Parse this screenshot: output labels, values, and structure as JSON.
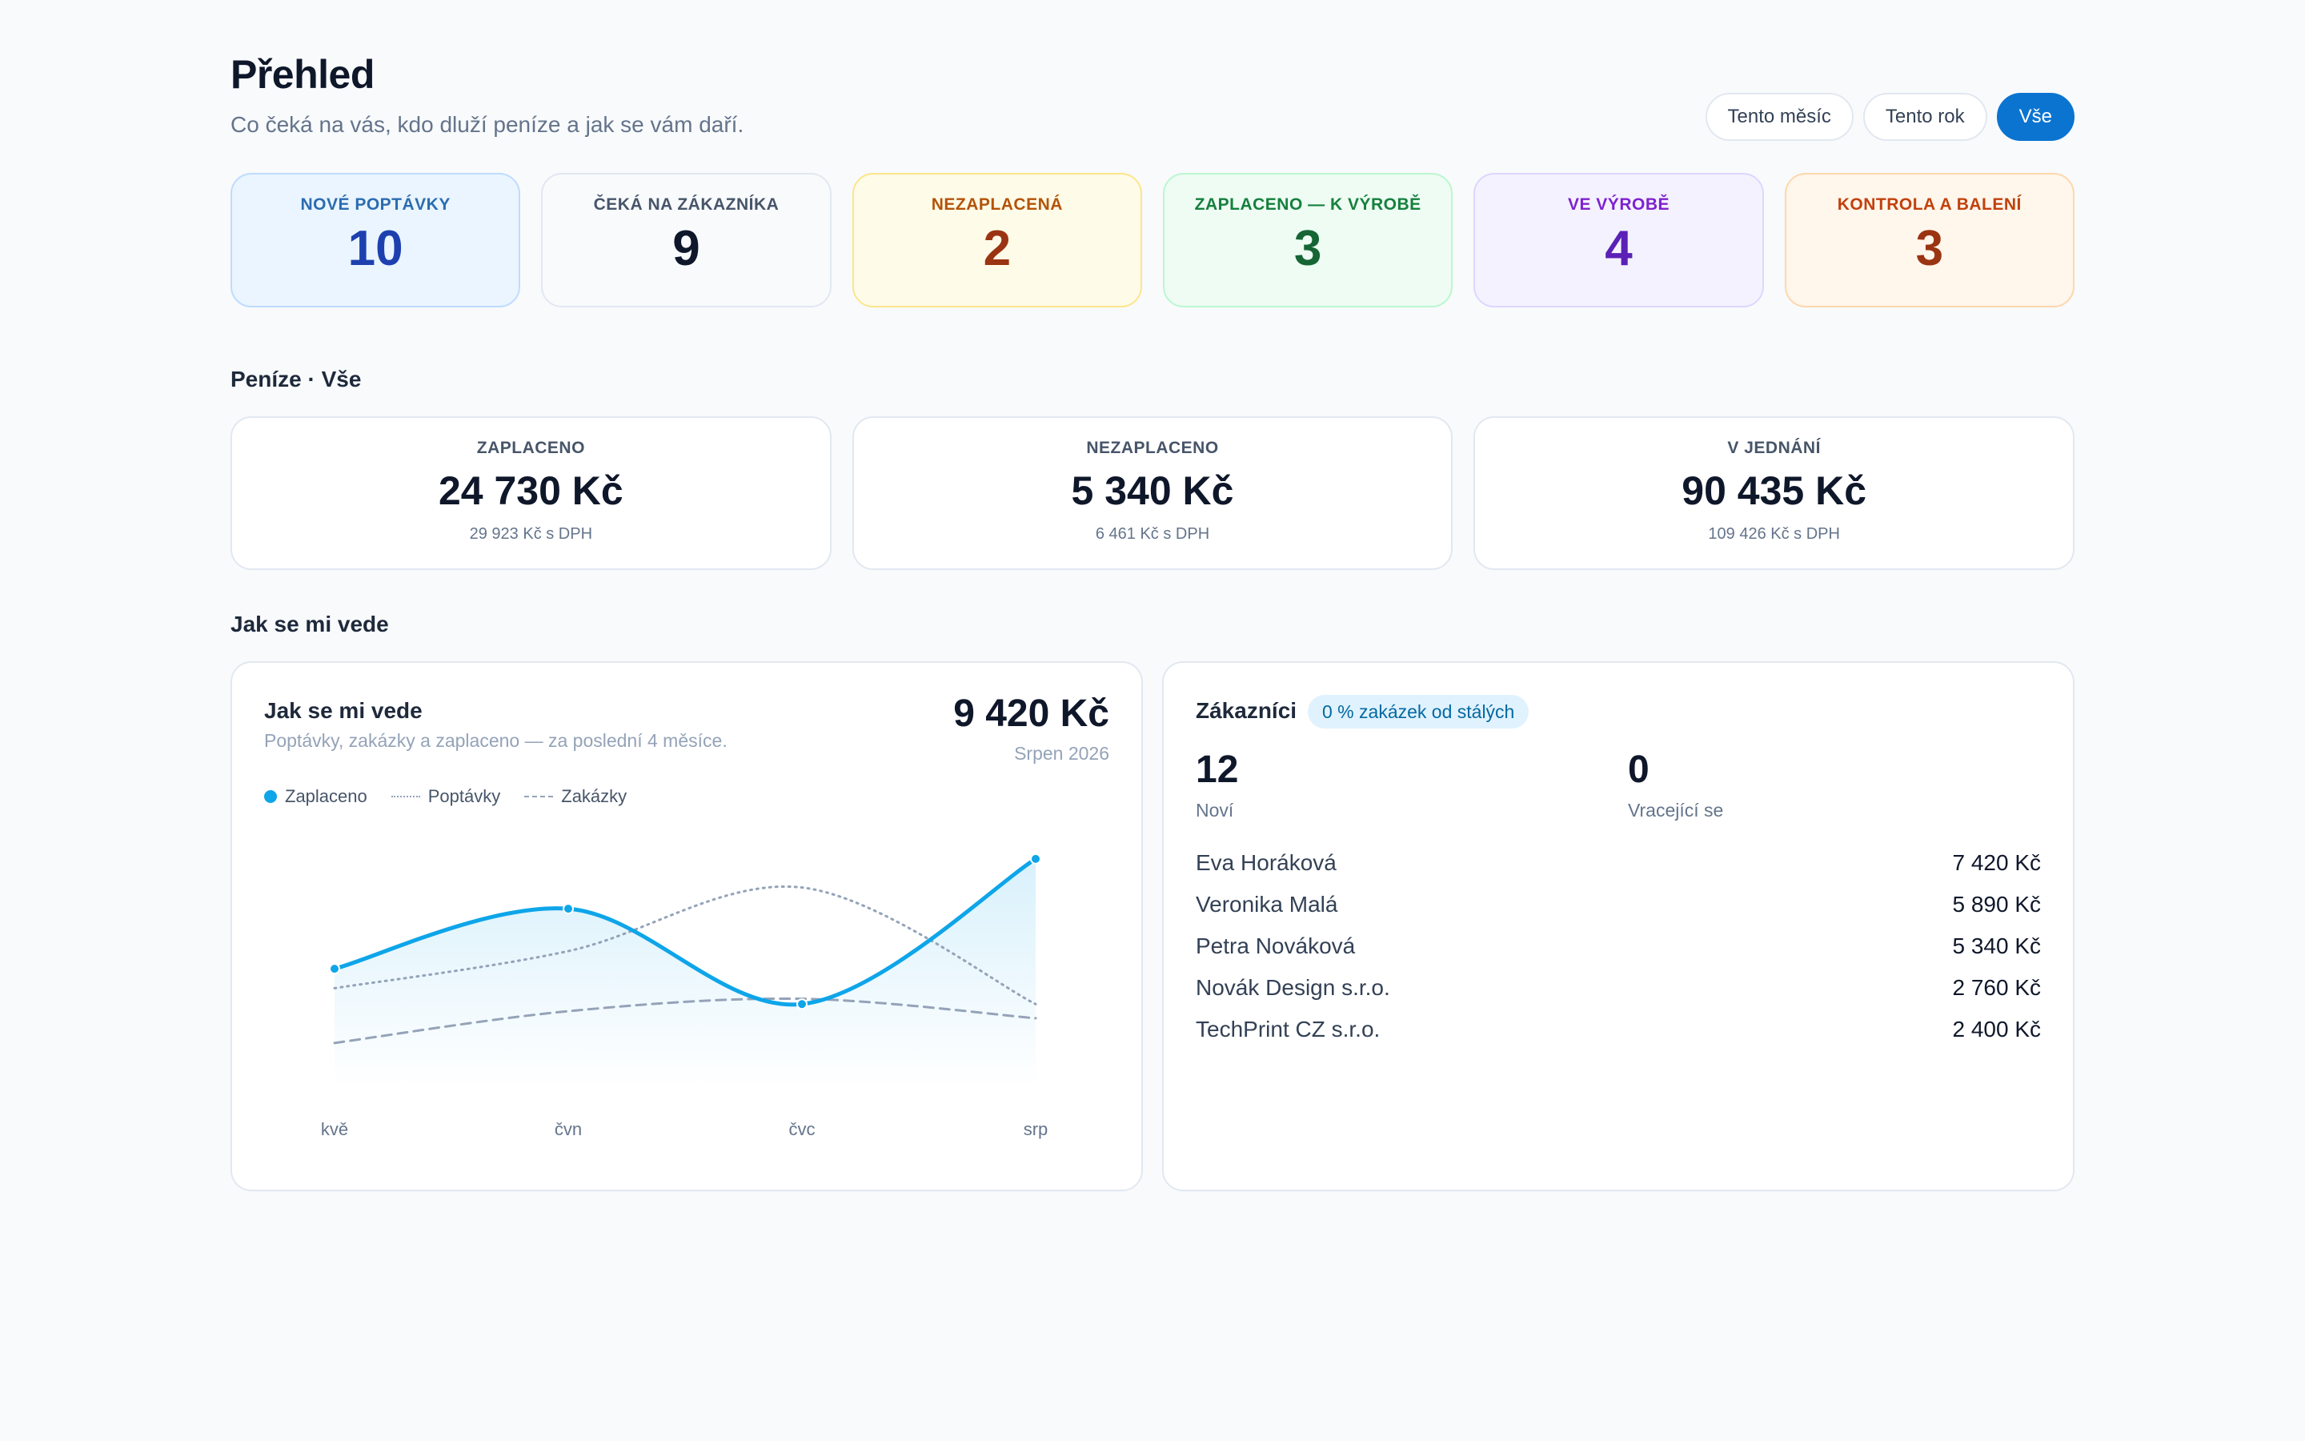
{
  "header": {
    "title": "Přehled",
    "subtitle": "Co čeká na vás, kdo dluží peníze a jak se vám daří."
  },
  "period_filter": {
    "options": [
      "Tento měsíc",
      "Tento rok",
      "Vše"
    ],
    "selected": "Vše"
  },
  "status_cards": [
    {
      "label": "Nové poptávky",
      "count": "10",
      "bg": "#eaf5ff",
      "border": "#bfdbfe",
      "label_color": "#2b6cb0",
      "count_color": "#1e40af"
    },
    {
      "label": "Čeká na zákazníka",
      "count": "9",
      "bg": "#f8fafc",
      "border": "#e2e8f0",
      "label_color": "#475569",
      "count_color": "#0f172a"
    },
    {
      "label": "Nezaplacená",
      "count": "2",
      "bg": "#fefbe8",
      "border": "#fde68a",
      "label_color": "#b45309",
      "count_color": "#9a3412"
    },
    {
      "label": "Zaplaceno — k výrobě",
      "count": "3",
      "bg": "#eefcf3",
      "border": "#bbf7d0",
      "label_color": "#15803d",
      "count_color": "#166534"
    },
    {
      "label": "Ve výrobě",
      "count": "4",
      "bg": "#f4f2ff",
      "border": "#ddd6fe",
      "label_color": "#7e22ce",
      "count_color": "#5b21b6"
    },
    {
      "label": "Kontrola a balení",
      "count": "3",
      "bg": "#fff6ec",
      "border": "#fed7aa",
      "label_color": "#c2410c",
      "count_color": "#9a3412"
    }
  ],
  "money_section": {
    "title": "Peníze · Vše",
    "cards": [
      {
        "label": "ZAPLACENO",
        "value": "24 730 Kč",
        "vat": "29 923 Kč s DPH"
      },
      {
        "label": "NEZAPLACENO",
        "value": "5 340 Kč",
        "vat": "6 461 Kč s DPH"
      },
      {
        "label": "V JEDNÁNÍ",
        "value": "90 435 Kč",
        "vat": "109 426 Kč s DPH"
      }
    ]
  },
  "performance_section": {
    "title": "Jak se mi vede"
  },
  "chart_panel": {
    "title": "Jak se mi vede",
    "subtitle": "Poptávky, zakázky a zaplaceno — za poslední 4 měsíce.",
    "total": "9 420 Kč",
    "period": "Srpen 2026",
    "legend": [
      "Zaplaceno",
      "Poptávky",
      "Zakázky"
    ]
  },
  "chart_data": {
    "type": "line",
    "categories": [
      "kvě",
      "čvn",
      "čvc",
      "srp"
    ],
    "series": [
      {
        "name": "Zaplaceno",
        "values": [
          3200,
          6600,
          1200,
          9420
        ],
        "color": "#0ea5e9",
        "style": "solid-area"
      },
      {
        "name": "Poptávky",
        "values": [
          2100,
          4200,
          7800,
          1200
        ],
        "color": "#94a3b8",
        "style": "dotted"
      },
      {
        "name": "Zakázky",
        "values": [
          -1000,
          800,
          1500,
          400
        ],
        "color": "#94a3b8",
        "style": "dashed"
      }
    ],
    "ylim": [
      -3500,
      11000
    ],
    "grid": false,
    "legend_position": "top-left"
  },
  "customers_panel": {
    "title": "Zákazníci",
    "badge": "0 % zakázek od stálých",
    "new_value": "12",
    "new_label": "Noví",
    "returning_value": "0",
    "returning_label": "Vracející se",
    "top": [
      {
        "name": "Eva Horáková",
        "amount": "7 420 Kč"
      },
      {
        "name": "Veronika Malá",
        "amount": "5 890 Kč"
      },
      {
        "name": "Petra Nováková",
        "amount": "5 340 Kč"
      },
      {
        "name": "Novák Design s.r.o.",
        "amount": "2 760 Kč"
      },
      {
        "name": "TechPrint CZ s.r.o.",
        "amount": "2 400 Kč"
      }
    ]
  }
}
